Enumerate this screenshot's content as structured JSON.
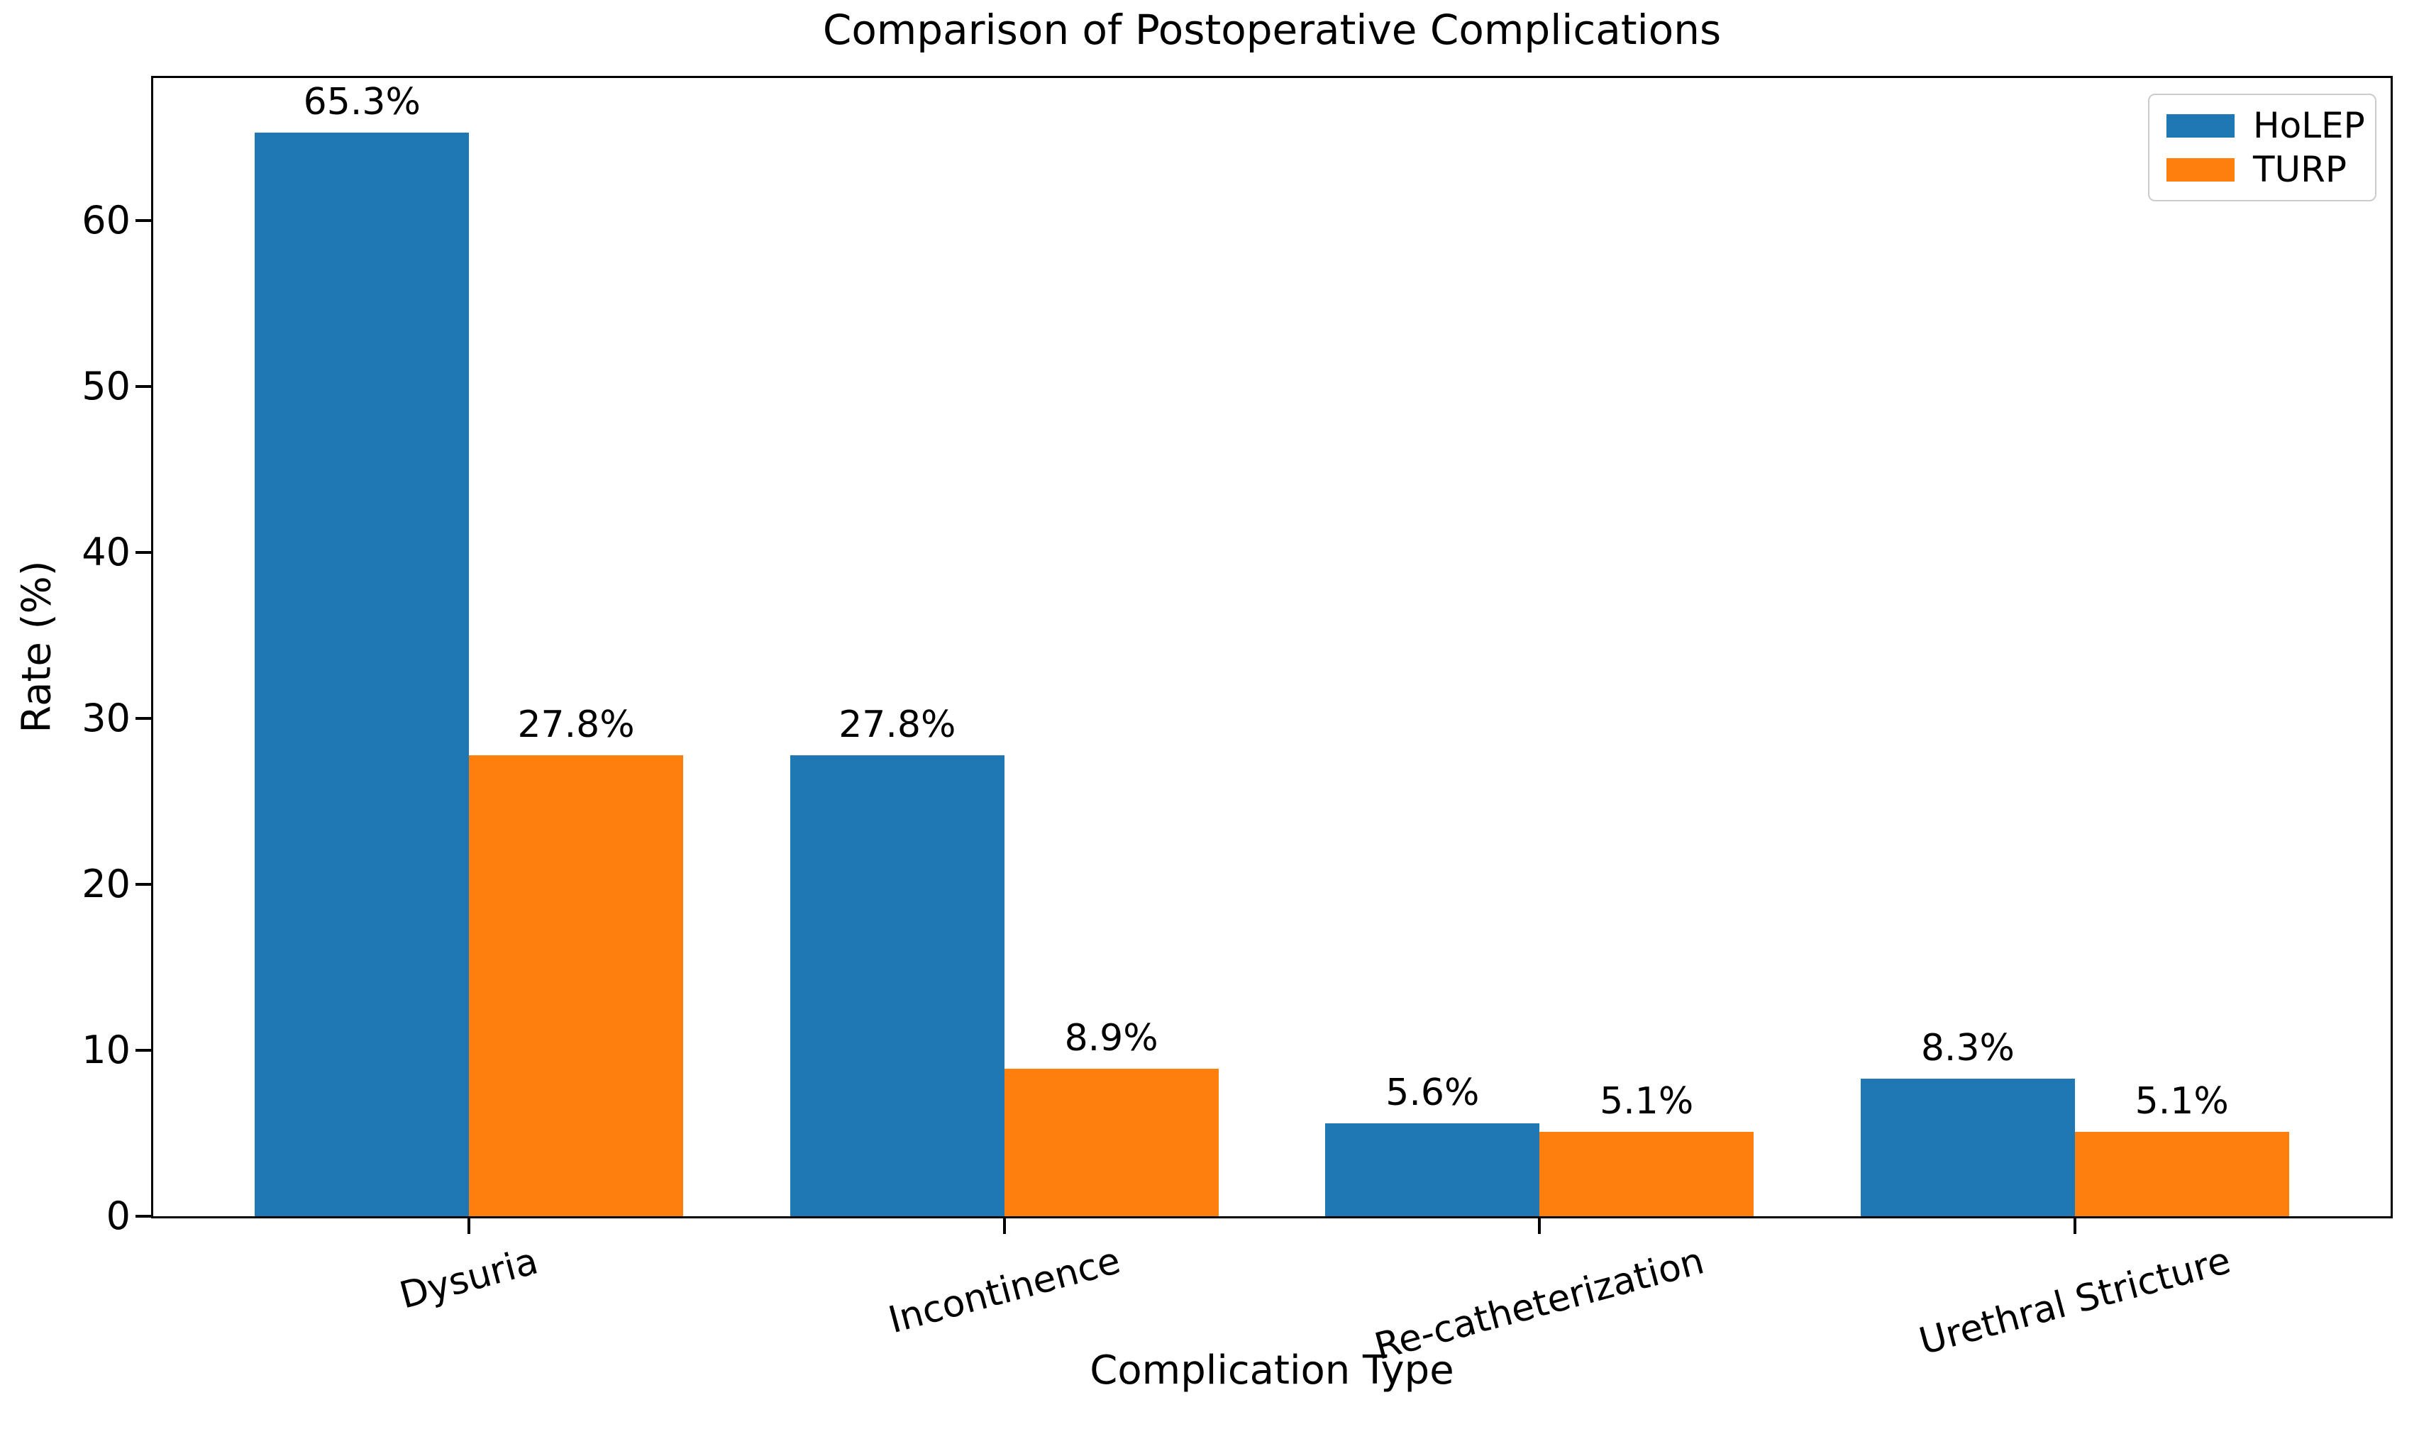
{
  "chart_data": {
    "type": "bar",
    "title": "Comparison of Postoperative Complications",
    "xlabel": "Complication Type",
    "ylabel": "Rate (%)",
    "categories": [
      "Dysuria",
      "Incontinence",
      "Re-catheterization",
      "Urethral Stricture"
    ],
    "series": [
      {
        "name": "HoLEP",
        "color": "#1f77b4",
        "values": [
          65.3,
          27.8,
          5.6,
          8.3
        ],
        "value_labels": [
          "65.3%",
          "27.8%",
          "5.6%",
          "8.3%"
        ]
      },
      {
        "name": "TURP",
        "color": "#ff7f0e",
        "values": [
          27.8,
          8.9,
          5.1,
          5.1
        ],
        "value_labels": [
          "27.8%",
          "8.9%",
          "5.1%",
          "5.1%"
        ]
      }
    ],
    "ylim": [
      0,
      68.6
    ],
    "yticks": [
      0,
      10,
      20,
      30,
      40,
      50,
      60
    ],
    "ytick_labels": [
      "0",
      "10",
      "20",
      "30",
      "40",
      "50",
      "60"
    ],
    "xlim": [
      -0.59,
      3.59
    ],
    "bar_width_units": 0.4,
    "x_tick_rotation_deg": 15,
    "grid": false,
    "legend": {
      "position": "upper right",
      "entries": [
        "HoLEP",
        "TURP"
      ]
    }
  }
}
